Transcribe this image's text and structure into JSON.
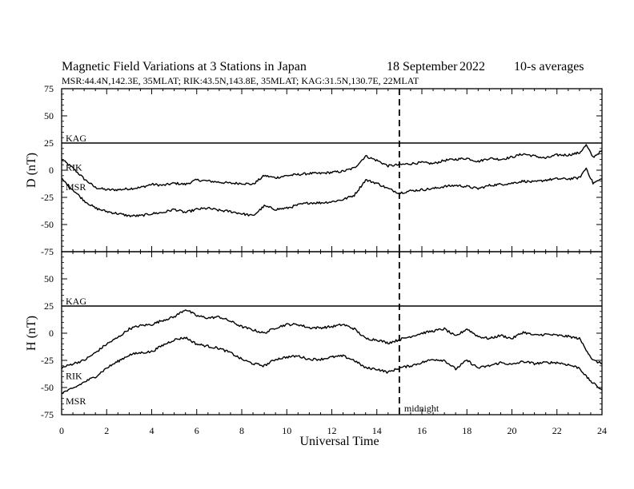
{
  "header": {
    "title": "Magnetic Field Variations at 3 Stations in Japan",
    "date": "18 September",
    "year": "2022",
    "averaging": "10-s averages",
    "stations_line": "MSR:44.4N,142.3E, 35MLAT;  RIK:43.5N,143.8E, 35MLAT;  KAG:31.5N,130.7E, 22MLAT"
  },
  "colors": {
    "line": "#000000",
    "background": "#ffffff"
  },
  "chart_data": [
    {
      "type": "line",
      "ylabel": "D (nT)",
      "xlabel": "",
      "xlim": [
        0,
        24
      ],
      "ylim": [
        -75,
        75
      ],
      "x_ticks": [
        0,
        2,
        4,
        6,
        8,
        10,
        12,
        14,
        16,
        18,
        20,
        22,
        24
      ],
      "y_ticks": [
        -75,
        -50,
        -25,
        0,
        25,
        50,
        75
      ],
      "series": [
        {
          "name": "KAG",
          "x": [
            0,
            24
          ],
          "y": [
            25,
            25
          ]
        },
        {
          "name": "RIK",
          "x": [
            0,
            0.5,
            1,
            1.5,
            2,
            2.5,
            3,
            3.5,
            4,
            4.5,
            5,
            5.5,
            6,
            6.5,
            7,
            7.5,
            8,
            8.5,
            9,
            9.5,
            10,
            10.5,
            11,
            11.5,
            12,
            12.5,
            13,
            13.5,
            14,
            14.5,
            15,
            15.5,
            16,
            16.5,
            17,
            17.5,
            18,
            18.5,
            19,
            19.5,
            20,
            20.5,
            21,
            21.5,
            22,
            22.5,
            23,
            23.3,
            23.6,
            24
          ],
          "y": [
            10,
            2,
            -8,
            -16,
            -18,
            -18,
            -17,
            -16,
            -13,
            -14,
            -12,
            -13,
            -9,
            -10,
            -11,
            -12,
            -12,
            -13,
            -5,
            -7,
            -5,
            -4,
            -3,
            -3,
            -2,
            -1,
            2,
            13,
            9,
            4,
            5,
            6,
            7,
            6,
            9,
            10,
            11,
            8,
            11,
            10,
            12,
            15,
            13,
            11,
            14,
            14,
            16,
            23,
            12,
            18
          ]
        },
        {
          "name": "MSR",
          "x": [
            0,
            0.5,
            1,
            1.5,
            2,
            2.5,
            3,
            3.5,
            4,
            4.5,
            5,
            5.5,
            6,
            6.5,
            7,
            7.5,
            8,
            8.5,
            9,
            9.5,
            10,
            10.5,
            11,
            11.5,
            12,
            12.5,
            13,
            13.5,
            14,
            14.5,
            15,
            15.5,
            16,
            16.5,
            17,
            17.5,
            18,
            18.5,
            19,
            19.5,
            20,
            20.5,
            21,
            21.5,
            22,
            22.5,
            23,
            23.3,
            23.6,
            24
          ],
          "y": [
            -8,
            -18,
            -28,
            -35,
            -38,
            -40,
            -42,
            -42,
            -40,
            -39,
            -36,
            -39,
            -36,
            -35,
            -37,
            -38,
            -40,
            -42,
            -33,
            -36,
            -35,
            -32,
            -30,
            -30,
            -29,
            -27,
            -23,
            -9,
            -12,
            -17,
            -21,
            -19,
            -18,
            -17,
            -15,
            -14,
            -15,
            -17,
            -14,
            -13,
            -12,
            -10,
            -11,
            -9,
            -8,
            -8,
            -7,
            2,
            -12,
            -8
          ]
        }
      ]
    },
    {
      "type": "line",
      "ylabel": "H (nT)",
      "xlabel": "Universal Time",
      "xlim": [
        0,
        24
      ],
      "ylim": [
        -75,
        75
      ],
      "x_ticks": [
        0,
        2,
        4,
        6,
        8,
        10,
        12,
        14,
        16,
        18,
        20,
        22,
        24
      ],
      "y_ticks": [
        -75,
        -50,
        -25,
        0,
        25,
        50,
        75
      ],
      "annotation": {
        "x": 15,
        "label": "midnight"
      },
      "series": [
        {
          "name": "KAG",
          "x": [
            0,
            24
          ],
          "y": [
            25,
            25
          ]
        },
        {
          "name": "RIK",
          "x": [
            0,
            0.5,
            1,
            1.5,
            2,
            2.5,
            3,
            3.5,
            4,
            4.5,
            5,
            5.5,
            6,
            6.5,
            7,
            7.5,
            8,
            8.5,
            9,
            9.5,
            10,
            10.5,
            11,
            11.5,
            12,
            12.5,
            13,
            13.5,
            14,
            14.5,
            15,
            15.5,
            16,
            16.5,
            17,
            17.5,
            18,
            18.5,
            19,
            19.5,
            20,
            20.5,
            21,
            21.5,
            22,
            22.5,
            23,
            23.3,
            23.6,
            24
          ],
          "y": [
            -32,
            -28,
            -25,
            -18,
            -10,
            -4,
            4,
            7,
            8,
            12,
            15,
            22,
            16,
            14,
            15,
            11,
            6,
            3,
            0,
            5,
            8,
            8,
            5,
            5,
            6,
            8,
            4,
            -5,
            -6,
            -9,
            -6,
            -3,
            0,
            2,
            4,
            -3,
            4,
            -3,
            -5,
            -2,
            -5,
            1,
            -2,
            -1,
            -2,
            -3,
            -5,
            -15,
            -25,
            -28
          ]
        },
        {
          "name": "MSR",
          "x": [
            0,
            0.5,
            1,
            1.5,
            2,
            2.5,
            3,
            3.5,
            4,
            4.5,
            5,
            5.5,
            6,
            6.5,
            7,
            7.5,
            8,
            8.5,
            9,
            9.5,
            10,
            10.5,
            11,
            11.5,
            12,
            12.5,
            13,
            13.5,
            14,
            14.5,
            15,
            15.5,
            16,
            16.5,
            17,
            17.5,
            18,
            18.5,
            19,
            19.5,
            20,
            20.5,
            21,
            21.5,
            22,
            22.5,
            23,
            23.3,
            23.6,
            24
          ],
          "y": [
            -55,
            -51,
            -45,
            -40,
            -32,
            -26,
            -20,
            -18,
            -17,
            -11,
            -6,
            -4,
            -10,
            -12,
            -14,
            -18,
            -24,
            -28,
            -30,
            -24,
            -22,
            -21,
            -24,
            -24,
            -22,
            -21,
            -25,
            -32,
            -33,
            -36,
            -32,
            -30,
            -27,
            -24,
            -25,
            -33,
            -25,
            -32,
            -30,
            -27,
            -29,
            -26,
            -28,
            -27,
            -27,
            -29,
            -32,
            -40,
            -46,
            -52
          ]
        }
      ]
    }
  ]
}
